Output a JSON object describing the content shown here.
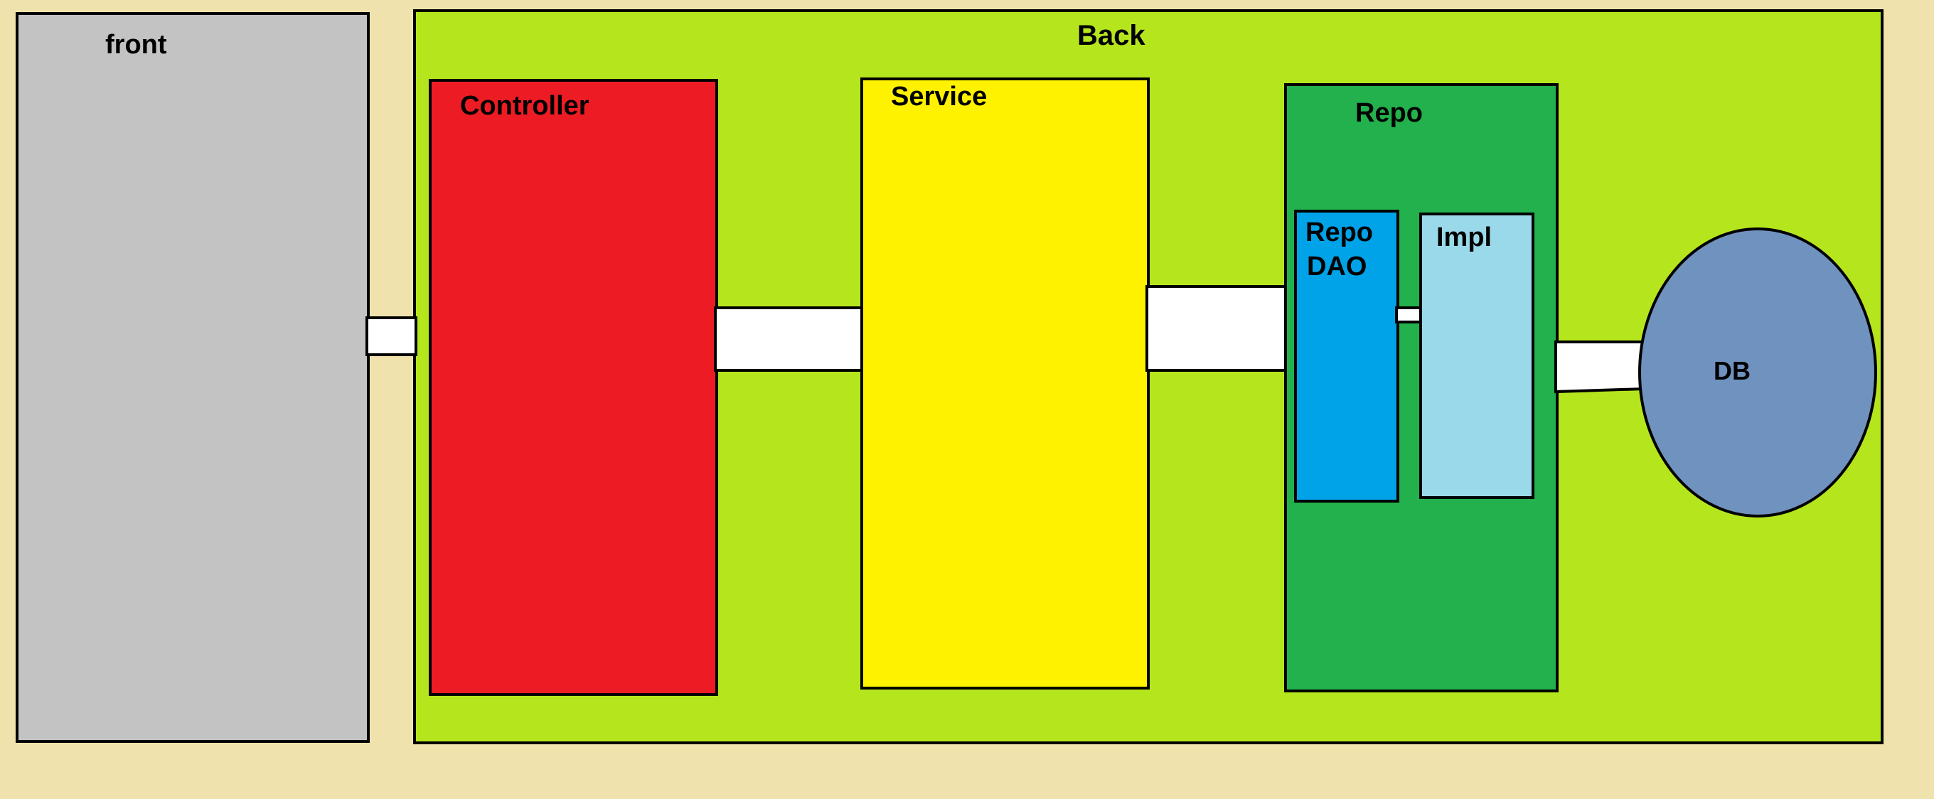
{
  "colors": {
    "background": "#efe2ad",
    "front": "#c3c3c3",
    "back": "#b5e61d",
    "controller": "#ed1c24",
    "service": "#fff200",
    "repo": "#22b14c",
    "repo_dao": "#00a2e8",
    "impl": "#99d9ea",
    "db": "#7092be",
    "connector": "#ffffff",
    "outline": "#000000"
  },
  "front": {
    "label": "front"
  },
  "back": {
    "label": "Back",
    "controller": {
      "label": "Controller"
    },
    "service": {
      "label": "Service"
    },
    "repo": {
      "label": "Repo",
      "repo_dao": {
        "label_line1": "Repo",
        "label_line2": "DAO"
      },
      "impl": {
        "label": "Impl"
      }
    }
  },
  "db": {
    "label": "DB"
  }
}
